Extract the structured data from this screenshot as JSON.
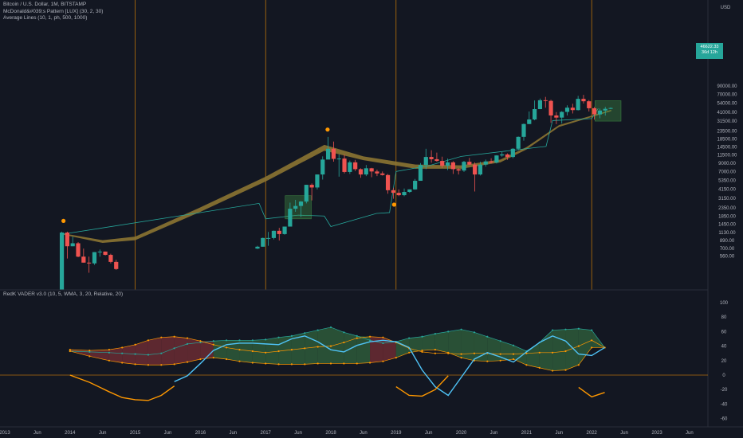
{
  "legends": {
    "main": [
      "Bitcoin / U.S. Dollar, 1M, BITSTAMP",
      "McDonald&#039;s Pattern [LUX] (30, 2, 30)",
      "Average Lines (10, 1, ph, 500, 1000)"
    ],
    "sub": "RedK VADER v3.0 (10, 5, WMA, 3, 20, Relative, 20)"
  },
  "price_axis": {
    "currency": "USD",
    "labels": [
      "90000.00",
      "70000.00",
      "54000.00",
      "41000.00",
      "31500.00",
      "23500.00",
      "18500.00",
      "14500.00",
      "11500.00",
      "9000.00",
      "7000.00",
      "5350.00",
      "4150.00",
      "3150.00",
      "2350.00",
      "1850.00",
      "1450.00",
      "1130.00",
      "890.00",
      "700.00",
      "560.00"
    ],
    "current_price": "46622.33",
    "countdown": "36d 12h"
  },
  "osc_axis": {
    "labels": [
      "100",
      "80",
      "60",
      "40",
      "20",
      "0",
      "-20",
      "-40",
      "-60"
    ]
  },
  "time_axis": {
    "labels": [
      "2013",
      "Jun",
      "2014",
      "Jun",
      "2015",
      "Jun",
      "2016",
      "Jun",
      "2017",
      "Jun",
      "2018",
      "Jun",
      "2019",
      "Jun",
      "2020",
      "Jun",
      "2021",
      "Jun",
      "2022",
      "Jun",
      "2023",
      "Jun"
    ],
    "year_marker_labels": [
      "2015",
      "2017",
      "2019",
      "2022"
    ]
  },
  "colors": {
    "background": "#131722",
    "up": "#26a69a",
    "down": "#ef5350",
    "year_line": "#ff9800",
    "avg_band": "#8c7432",
    "avg_line": "#26a69a",
    "box_fill": "#4caf50",
    "osc_blue": "#4fc3f7",
    "osc_orange": "#ff9800",
    "osc_green_band": "#2e5a3a",
    "osc_red_band": "#6b2b32"
  },
  "chart_data": [
    {
      "type": "candlestick",
      "title": "Bitcoin / U.S. Dollar, 1M, BITSTAMP",
      "scale": "log",
      "y_unit": "USD",
      "candles": [
        {
          "t": "2013-11",
          "o": 200,
          "h": 1160,
          "l": 200,
          "c": 1130
        },
        {
          "t": "2013-12",
          "o": 1130,
          "h": 1160,
          "l": 520,
          "c": 750
        },
        {
          "t": "2014-01",
          "o": 750,
          "h": 1000,
          "l": 750,
          "c": 820
        },
        {
          "t": "2014-02",
          "o": 820,
          "h": 850,
          "l": 540,
          "c": 550
        },
        {
          "t": "2014-03",
          "o": 550,
          "h": 700,
          "l": 460,
          "c": 460
        },
        {
          "t": "2014-04",
          "o": 460,
          "h": 550,
          "l": 340,
          "c": 450
        },
        {
          "t": "2014-05",
          "o": 450,
          "h": 630,
          "l": 430,
          "c": 630
        },
        {
          "t": "2014-06",
          "o": 630,
          "h": 680,
          "l": 550,
          "c": 640
        },
        {
          "t": "2014-07",
          "o": 640,
          "h": 640,
          "l": 570,
          "c": 580
        },
        {
          "t": "2014-08",
          "o": 580,
          "h": 600,
          "l": 450,
          "c": 470
        },
        {
          "t": "2014-09",
          "o": 470,
          "h": 500,
          "l": 370,
          "c": 380
        },
        {
          "t": "2016-11",
          "o": 700,
          "h": 760,
          "l": 690,
          "c": 740
        },
        {
          "t": "2016-12",
          "o": 740,
          "h": 970,
          "l": 740,
          "c": 960
        },
        {
          "t": "2017-01",
          "o": 960,
          "h": 1150,
          "l": 760,
          "c": 960
        },
        {
          "t": "2017-02",
          "o": 960,
          "h": 1200,
          "l": 920,
          "c": 1190
        },
        {
          "t": "2017-03",
          "o": 1190,
          "h": 1300,
          "l": 890,
          "c": 1080
        },
        {
          "t": "2017-04",
          "o": 1080,
          "h": 1350,
          "l": 1060,
          "c": 1350
        },
        {
          "t": "2017-05",
          "o": 1350,
          "h": 2760,
          "l": 1350,
          "c": 2300
        },
        {
          "t": "2017-06",
          "o": 2300,
          "h": 3000,
          "l": 2100,
          "c": 2500
        },
        {
          "t": "2017-07",
          "o": 2500,
          "h": 2900,
          "l": 1800,
          "c": 2850
        },
        {
          "t": "2017-08",
          "o": 2850,
          "h": 4700,
          "l": 2700,
          "c": 4700
        },
        {
          "t": "2017-09",
          "o": 4700,
          "h": 4900,
          "l": 2950,
          "c": 4340
        },
        {
          "t": "2017-10",
          "o": 4340,
          "h": 6400,
          "l": 4100,
          "c": 6400
        },
        {
          "t": "2017-11",
          "o": 6400,
          "h": 11000,
          "l": 5500,
          "c": 10000
        },
        {
          "t": "2017-12",
          "o": 10000,
          "h": 19700,
          "l": 10500,
          "c": 13800
        },
        {
          "t": "2018-01",
          "o": 13800,
          "h": 17100,
          "l": 9400,
          "c": 10200
        },
        {
          "t": "2018-02",
          "o": 10200,
          "h": 11700,
          "l": 6000,
          "c": 10300
        },
        {
          "t": "2018-03",
          "o": 10300,
          "h": 11600,
          "l": 6600,
          "c": 6900
        },
        {
          "t": "2018-04",
          "o": 6900,
          "h": 9700,
          "l": 6500,
          "c": 9200
        },
        {
          "t": "2018-05",
          "o": 9200,
          "h": 9900,
          "l": 7100,
          "c": 7500
        },
        {
          "t": "2018-06",
          "o": 7500,
          "h": 7700,
          "l": 5800,
          "c": 6400
        },
        {
          "t": "2018-07",
          "o": 6400,
          "h": 8500,
          "l": 6100,
          "c": 7700
        },
        {
          "t": "2018-08",
          "o": 7700,
          "h": 7800,
          "l": 5900,
          "c": 7000
        },
        {
          "t": "2018-09",
          "o": 7000,
          "h": 7400,
          "l": 6100,
          "c": 6600
        },
        {
          "t": "2018-10",
          "o": 6600,
          "h": 7000,
          "l": 6200,
          "c": 6300
        },
        {
          "t": "2018-11",
          "o": 6300,
          "h": 6500,
          "l": 3600,
          "c": 4000
        },
        {
          "t": "2018-12",
          "o": 4000,
          "h": 4300,
          "l": 3100,
          "c": 3700
        },
        {
          "t": "2019-01",
          "o": 3700,
          "h": 4100,
          "l": 3350,
          "c": 3450
        },
        {
          "t": "2019-02",
          "o": 3450,
          "h": 4200,
          "l": 3350,
          "c": 3800
        },
        {
          "t": "2019-03",
          "o": 3800,
          "h": 4100,
          "l": 3700,
          "c": 4100
        },
        {
          "t": "2019-04",
          "o": 4100,
          "h": 5600,
          "l": 4050,
          "c": 5300
        },
        {
          "t": "2019-05",
          "o": 5300,
          "h": 9000,
          "l": 5300,
          "c": 8500
        },
        {
          "t": "2019-06",
          "o": 8500,
          "h": 13800,
          "l": 7500,
          "c": 10800
        },
        {
          "t": "2019-07",
          "o": 10800,
          "h": 13200,
          "l": 9100,
          "c": 10100
        },
        {
          "t": "2019-08",
          "o": 10100,
          "h": 12300,
          "l": 9400,
          "c": 9600
        },
        {
          "t": "2019-09",
          "o": 9600,
          "h": 10900,
          "l": 7800,
          "c": 8300
        },
        {
          "t": "2019-10",
          "o": 8300,
          "h": 10300,
          "l": 7300,
          "c": 9200
        },
        {
          "t": "2019-11",
          "o": 9200,
          "h": 9500,
          "l": 6500,
          "c": 7500
        },
        {
          "t": "2019-12",
          "o": 7500,
          "h": 7700,
          "l": 6400,
          "c": 7200
        },
        {
          "t": "2020-01",
          "o": 7200,
          "h": 9600,
          "l": 6900,
          "c": 9350
        },
        {
          "t": "2020-02",
          "o": 9350,
          "h": 10500,
          "l": 8500,
          "c": 8600
        },
        {
          "t": "2020-03",
          "o": 8600,
          "h": 9200,
          "l": 3850,
          "c": 6400
        },
        {
          "t": "2020-04",
          "o": 6400,
          "h": 9400,
          "l": 6200,
          "c": 8600
        },
        {
          "t": "2020-05",
          "o": 8600,
          "h": 10000,
          "l": 8100,
          "c": 9450
        },
        {
          "t": "2020-06",
          "o": 9450,
          "h": 10400,
          "l": 8900,
          "c": 9150
        },
        {
          "t": "2020-07",
          "o": 9150,
          "h": 11400,
          "l": 8900,
          "c": 11300
        },
        {
          "t": "2020-08",
          "o": 11300,
          "h": 12500,
          "l": 10900,
          "c": 11650
        },
        {
          "t": "2020-09",
          "o": 11650,
          "h": 12000,
          "l": 9900,
          "c": 10800
        },
        {
          "t": "2020-10",
          "o": 10800,
          "h": 14100,
          "l": 10400,
          "c": 13800
        },
        {
          "t": "2020-11",
          "o": 13800,
          "h": 19900,
          "l": 13200,
          "c": 19700
        },
        {
          "t": "2020-12",
          "o": 19700,
          "h": 29300,
          "l": 17600,
          "c": 28900
        },
        {
          "t": "2021-01",
          "o": 28900,
          "h": 42000,
          "l": 28700,
          "c": 33100
        },
        {
          "t": "2021-02",
          "o": 33100,
          "h": 58400,
          "l": 32300,
          "c": 45100
        },
        {
          "t": "2021-03",
          "o": 45100,
          "h": 61800,
          "l": 45000,
          "c": 58800
        },
        {
          "t": "2021-04",
          "o": 58800,
          "h": 65000,
          "l": 47000,
          "c": 57700
        },
        {
          "t": "2021-05",
          "o": 57700,
          "h": 59600,
          "l": 30000,
          "c": 37300
        },
        {
          "t": "2021-06",
          "o": 37300,
          "h": 41300,
          "l": 28800,
          "c": 35000
        },
        {
          "t": "2021-07",
          "o": 35000,
          "h": 42400,
          "l": 29300,
          "c": 41500
        },
        {
          "t": "2021-08",
          "o": 41500,
          "h": 50500,
          "l": 37300,
          "c": 47100
        },
        {
          "t": "2021-09",
          "o": 47100,
          "h": 52900,
          "l": 39600,
          "c": 43800
        },
        {
          "t": "2021-10",
          "o": 43800,
          "h": 67000,
          "l": 43300,
          "c": 61300
        },
        {
          "t": "2021-11",
          "o": 61300,
          "h": 69000,
          "l": 53300,
          "c": 57000
        },
        {
          "t": "2021-12",
          "o": 57000,
          "h": 59100,
          "l": 42000,
          "c": 46300
        },
        {
          "t": "2022-01",
          "o": 46300,
          "h": 48000,
          "l": 33000,
          "c": 38500
        },
        {
          "t": "2022-02",
          "o": 38500,
          "h": 45800,
          "l": 34300,
          "c": 43200
        },
        {
          "t": "2022-03",
          "o": 43200,
          "h": 48200,
          "l": 37200,
          "c": 45500
        },
        {
          "t": "2022-04",
          "o": 45500,
          "h": 47500,
          "l": 45000,
          "c": 46622
        }
      ],
      "avg_band_upper": [
        [
          2013.9,
          1100
        ],
        [
          2014.5,
          900
        ],
        [
          2015.0,
          1000
        ],
        [
          2016.0,
          2400
        ],
        [
          2017.0,
          6000
        ],
        [
          2017.9,
          15500
        ],
        [
          2018.5,
          11000
        ],
        [
          2019.3,
          8600
        ],
        [
          2020.0,
          8400
        ],
        [
          2020.6,
          10000
        ],
        [
          2021.0,
          14500
        ],
        [
          2021.5,
          28000
        ],
        [
          2022.3,
          44000
        ]
      ],
      "avg_band_lower": [
        [
          2013.9,
          1060
        ],
        [
          2014.5,
          830
        ],
        [
          2015.0,
          900
        ],
        [
          2016.0,
          2100
        ],
        [
          2017.0,
          5200
        ],
        [
          2017.9,
          13000
        ],
        [
          2018.5,
          9800
        ],
        [
          2019.3,
          7600
        ],
        [
          2020.0,
          7600
        ],
        [
          2020.6,
          9200
        ],
        [
          2021.0,
          13500
        ],
        [
          2021.5,
          26500
        ],
        [
          2022.3,
          42500
        ]
      ],
      "avg_line": [
        [
          2013.9,
          1080
        ],
        [
          2016.9,
          2700
        ],
        [
          2017.0,
          1700
        ],
        [
          2017.5,
          1900
        ],
        [
          2017.9,
          1850
        ],
        [
          2018.0,
          1350
        ],
        [
          2018.7,
          2000
        ],
        [
          2018.9,
          2050
        ],
        [
          2019.0,
          7000
        ],
        [
          2019.5,
          8300
        ],
        [
          2020.0,
          11000
        ],
        [
          2021.2,
          14500
        ],
        [
          2021.3,
          14800
        ],
        [
          2021.4,
          32000
        ],
        [
          2022.0,
          34000
        ],
        [
          2022.1,
          46000
        ]
      ],
      "highlight_boxes": [
        {
          "x0": 2017.3,
          "x1": 2017.7,
          "y0": 1700,
          "y1": 3400
        },
        {
          "x0": 2022.05,
          "x1": 2022.45,
          "y0": 31500,
          "y1": 58000
        }
      ],
      "pattern_markers": [
        {
          "t": 2013.9,
          "kind": "top",
          "price": 1600
        },
        {
          "t": 2017.95,
          "kind": "top",
          "price": 24500
        },
        {
          "t": 2018.97,
          "kind": "bottom",
          "price": 2600
        }
      ]
    },
    {
      "type": "line",
      "title": "RedK VADER v3.0 (10, 5, WMA, 3, 20, Relative, 20)",
      "ylim": [
        -70,
        110
      ],
      "x": [
        2014.0,
        2014.3,
        2014.6,
        2014.8,
        2015.0,
        2015.2,
        2015.4,
        2015.6,
        2015.8,
        2016.0,
        2016.2,
        2016.4,
        2016.6,
        2016.8,
        2017.0,
        2017.2,
        2017.4,
        2017.6,
        2017.8,
        2018.0,
        2018.2,
        2018.4,
        2018.6,
        2018.8,
        2019.0,
        2019.2,
        2019.4,
        2019.6,
        2019.8,
        2020.0,
        2020.2,
        2020.4,
        2020.6,
        2020.8,
        2021.0,
        2021.2,
        2021.4,
        2021.6,
        2021.8,
        2022.0,
        2022.2
      ],
      "series": [
        {
          "role": "upper_green",
          "values": [
            33,
            32,
            31,
            30,
            29,
            28,
            30,
            37,
            43,
            45,
            47,
            48,
            48,
            48,
            49,
            52,
            54,
            58,
            62,
            66,
            59,
            54,
            48,
            44,
            46,
            51,
            53,
            57,
            60,
            63,
            59,
            53,
            47,
            41,
            33,
            45,
            62,
            63,
            64,
            62,
            38
          ]
        },
        {
          "role": "upper_red",
          "values": [
            35,
            34,
            35,
            38,
            42,
            48,
            52,
            53,
            51,
            47,
            42,
            38,
            35,
            33,
            31,
            33,
            35,
            37,
            39,
            40,
            45,
            51,
            53,
            52,
            45,
            37,
            32,
            30,
            30,
            29,
            30,
            30,
            29,
            29,
            30,
            31,
            31,
            33,
            40,
            48,
            38
          ]
        },
        {
          "role": "lower_band",
          "values": [
            33,
            26,
            20,
            17,
            15,
            14,
            14,
            15,
            18,
            22,
            24,
            22,
            19,
            17,
            16,
            15,
            15,
            15,
            16,
            16,
            16,
            16,
            17,
            19,
            24,
            31,
            34,
            35,
            31,
            24,
            20,
            19,
            20,
            22,
            14,
            10,
            6,
            7,
            14,
            38,
            38
          ]
        },
        {
          "role": "blue_line",
          "values": [
            null,
            null,
            null,
            null,
            null,
            null,
            null,
            -9,
            -1,
            16,
            34,
            42,
            44,
            44,
            43,
            42,
            50,
            54,
            46,
            35,
            32,
            41,
            46,
            48,
            46,
            38,
            7,
            -16,
            -28,
            -3,
            22,
            31,
            25,
            18,
            32,
            45,
            54,
            47,
            29,
            27,
            38
          ]
        },
        {
          "role": "orange_line",
          "values": [
            0,
            -10,
            -23,
            -31,
            -34,
            -35,
            -28,
            -15,
            null,
            null,
            null,
            null,
            null,
            null,
            null,
            null,
            null,
            null,
            null,
            null,
            null,
            null,
            null,
            null,
            -16,
            -28,
            -29,
            -20,
            -1,
            null,
            null,
            null,
            null,
            null,
            null,
            null,
            null,
            null,
            -17,
            -30,
            -24
          ]
        }
      ]
    }
  ]
}
